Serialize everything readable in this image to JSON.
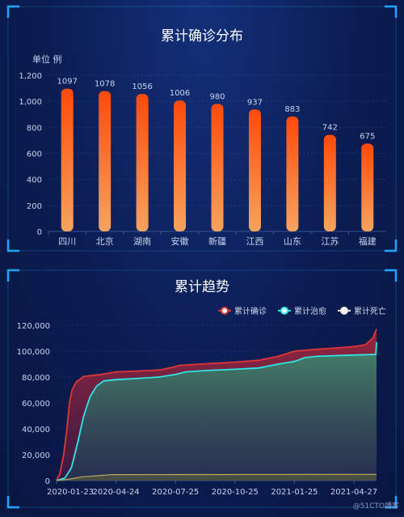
{
  "colors": {
    "background": "#0b1c52",
    "frame": "#1b8fd0",
    "bar_top": "#ff4a0a",
    "bar_bottom": "#f6a45e",
    "confirmed": "#e03636",
    "cured": "#2ee6e6",
    "dead": "#e6e6e6",
    "text": "#c8d4f0"
  },
  "chart_data": [
    {
      "type": "bar",
      "title": "累计确诊分布",
      "ylabel": "单位 例",
      "categories": [
        "四川",
        "北京",
        "湖南",
        "安徽",
        "新疆",
        "江西",
        "山东",
        "江苏",
        "福建"
      ],
      "values": [
        1097,
        1078,
        1056,
        1006,
        980,
        937,
        883,
        742,
        675
      ],
      "ylim": [
        0,
        1200
      ],
      "yticks": [
        "0",
        "200",
        "400",
        "600",
        "800",
        "1,000",
        "1,200"
      ],
      "grid": true
    },
    {
      "type": "area",
      "title": "累计趋势",
      "legend_position": "top-right",
      "ylim": [
        0,
        120000
      ],
      "yticks": [
        "0",
        "20,000",
        "40,000",
        "60,000",
        "80,000",
        "100,000",
        "120,000"
      ],
      "xticks": [
        "2020-01-23",
        "2020-04-24",
        "2020-07-25",
        "2020-10-25",
        "2021-01-25",
        "2021-04-27"
      ],
      "x_start": "2020-01-23",
      "x_end": "2021-06-01",
      "series": [
        {
          "name": "累计确诊",
          "points": [
            [
              "2020-01-23",
              600
            ],
            [
              "2020-01-28",
              5000
            ],
            [
              "2020-02-03",
              20000
            ],
            [
              "2020-02-08",
              40000
            ],
            [
              "2020-02-12",
              60000
            ],
            [
              "2020-02-16",
              70000
            ],
            [
              "2020-02-22",
              76000
            ],
            [
              "2020-03-05",
              80500
            ],
            [
              "2020-04-01",
              82000
            ],
            [
              "2020-04-24",
              84000
            ],
            [
              "2020-06-15",
              85000
            ],
            [
              "2020-07-01",
              85500
            ],
            [
              "2020-07-20",
              87500
            ],
            [
              "2020-07-31",
              89000
            ],
            [
              "2020-09-01",
              90000
            ],
            [
              "2020-10-25",
              91500
            ],
            [
              "2020-12-01",
              93000
            ],
            [
              "2020-12-31",
              96000
            ],
            [
              "2021-01-25",
              100000
            ],
            [
              "2021-03-01",
              101500
            ],
            [
              "2021-04-01",
              102500
            ],
            [
              "2021-04-27",
              103500
            ],
            [
              "2021-05-15",
              105000
            ],
            [
              "2021-05-26",
              110000
            ],
            [
              "2021-06-01",
              117000
            ]
          ]
        },
        {
          "name": "累计治愈",
          "points": [
            [
              "2020-01-23",
              0
            ],
            [
              "2020-02-05",
              2000
            ],
            [
              "2020-02-15",
              10000
            ],
            [
              "2020-02-25",
              30000
            ],
            [
              "2020-03-05",
              50000
            ],
            [
              "2020-03-15",
              65000
            ],
            [
              "2020-03-25",
              73000
            ],
            [
              "2020-04-05",
              77000
            ],
            [
              "2020-04-24",
              78000
            ],
            [
              "2020-05-30",
              79000
            ],
            [
              "2020-06-30",
              80000
            ],
            [
              "2020-07-25",
              82000
            ],
            [
              "2020-08-10",
              84000
            ],
            [
              "2020-09-10",
              85000
            ],
            [
              "2020-10-25",
              86000
            ],
            [
              "2020-12-01",
              87000
            ],
            [
              "2020-12-31",
              90000
            ],
            [
              "2021-01-25",
              92000
            ],
            [
              "2021-02-10",
              95000
            ],
            [
              "2021-03-01",
              96000
            ],
            [
              "2021-04-27",
              97000
            ],
            [
              "2021-05-31",
              97500
            ],
            [
              "2021-06-01",
              107000
            ]
          ]
        },
        {
          "name": "累计死亡",
          "points": [
            [
              "2020-01-23",
              17
            ],
            [
              "2020-02-10",
              1000
            ],
            [
              "2020-03-05",
              3000
            ],
            [
              "2020-04-17",
              4600
            ],
            [
              "2021-06-01",
              4800
            ]
          ]
        }
      ]
    }
  ],
  "watermark": "@51CTO博客"
}
